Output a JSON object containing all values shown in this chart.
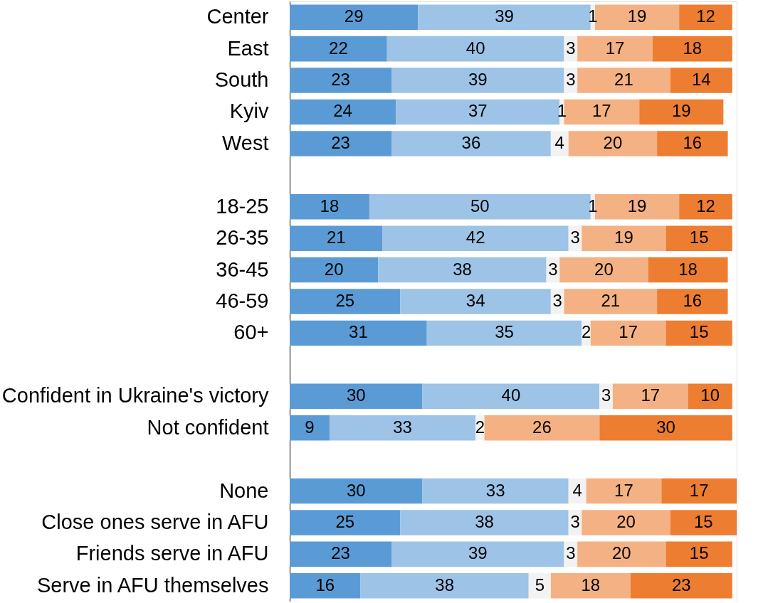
{
  "chart_data": {
    "type": "bar",
    "orientation": "horizontal",
    "stacked": true,
    "data_labels": true,
    "grid": false,
    "tick_labels": "y",
    "xlim": [
      0,
      101
    ],
    "categories": [
      "Center",
      "East",
      "South",
      "Kyiv",
      "West",
      null,
      "18-25",
      "26-35",
      "36-45",
      "46-59",
      "60+",
      null,
      "Confident in Ukraine's victory",
      "Not confident",
      null,
      "None",
      "Close ones serve in AFU",
      "Friends serve in AFU",
      "Serve in AFU themselves"
    ],
    "series": [
      {
        "color": "#5b9bd5",
        "values": [
          29,
          22,
          23,
          24,
          23,
          null,
          18,
          21,
          20,
          25,
          31,
          null,
          30,
          9,
          null,
          30,
          25,
          23,
          16
        ]
      },
      {
        "color": "#9dc3e6",
        "values": [
          39,
          40,
          39,
          37,
          36,
          null,
          50,
          42,
          38,
          34,
          35,
          null,
          40,
          33,
          null,
          33,
          38,
          39,
          38
        ]
      },
      {
        "color": "#f2f2f2",
        "values": [
          1,
          3,
          3,
          1,
          4,
          null,
          1,
          3,
          3,
          3,
          2,
          null,
          3,
          2,
          null,
          4,
          3,
          3,
          5
        ]
      },
      {
        "color": "#f4b183",
        "values": [
          19,
          17,
          21,
          17,
          20,
          null,
          19,
          19,
          20,
          21,
          17,
          null,
          17,
          26,
          null,
          17,
          20,
          20,
          18
        ]
      },
      {
        "color": "#ed7d31",
        "values": [
          12,
          18,
          14,
          19,
          16,
          null,
          12,
          15,
          18,
          16,
          15,
          null,
          10,
          30,
          null,
          17,
          15,
          15,
          23
        ]
      }
    ]
  }
}
